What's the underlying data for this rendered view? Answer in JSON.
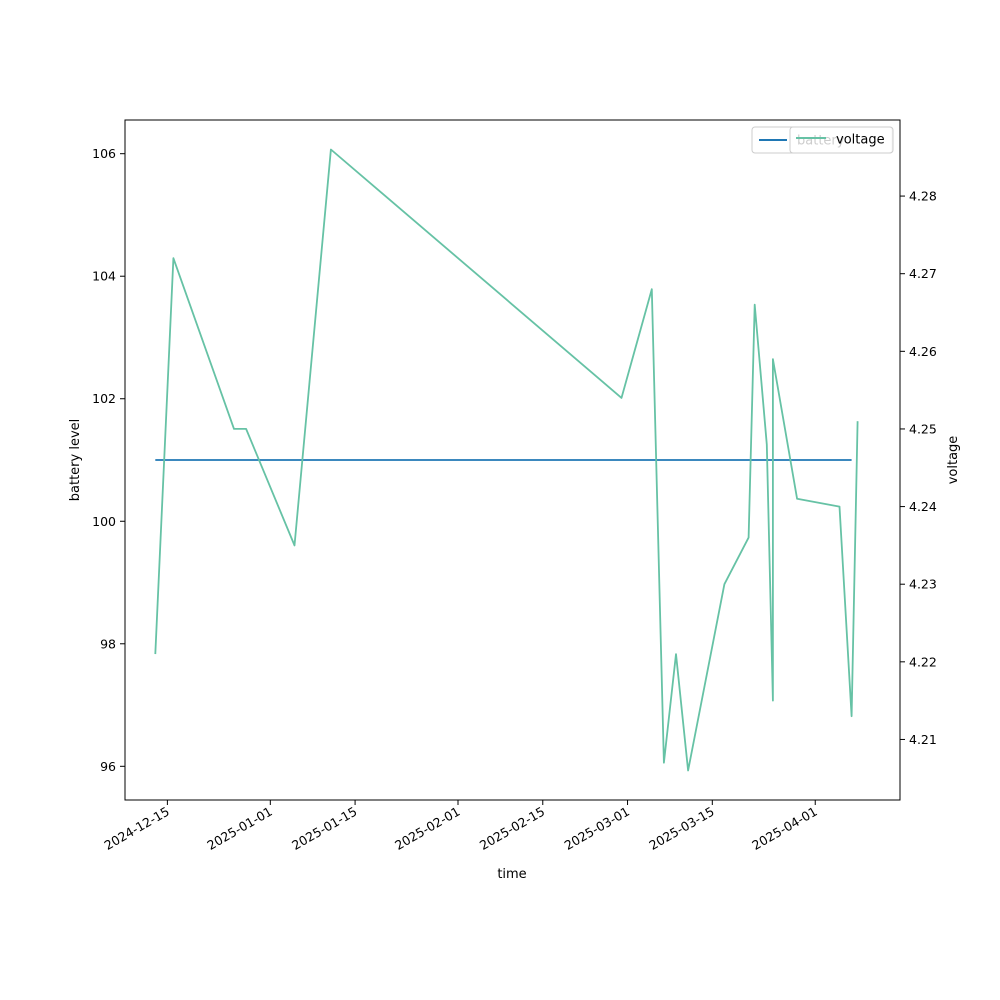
{
  "chart_data": {
    "type": "line",
    "xlabel": "time",
    "y_left_label": "battery level",
    "y_right_label": "voltage",
    "x_ticks": [
      "2024-12-15",
      "2025-01-01",
      "2025-01-15",
      "2025-02-01",
      "2025-02-15",
      "2025-03-01",
      "2025-03-15",
      "2025-04-01"
    ],
    "y_left_ticks": [
      96,
      98,
      100,
      102,
      104,
      106
    ],
    "y_left_range": [
      95.45,
      106.55
    ],
    "y_right_ticks": [
      4.21,
      4.22,
      4.23,
      4.24,
      4.25,
      4.26,
      4.27,
      4.28
    ],
    "y_right_range": [
      4.2022,
      4.2898
    ],
    "x_range": [
      "2024-12-08",
      "2025-04-15"
    ],
    "legend_placement": "top-right",
    "series": [
      {
        "name": "battery",
        "axis": "left",
        "color": "#1f77b4",
        "points": [
          [
            "2024-12-13",
            101
          ],
          [
            "2025-04-07",
            101
          ]
        ]
      },
      {
        "name": "voltage",
        "axis": "right",
        "color": "#66c2a5",
        "points": [
          [
            "2024-12-13",
            4.221
          ],
          [
            "2024-12-16",
            4.272
          ],
          [
            "2024-12-26",
            4.25
          ],
          [
            "2024-12-28",
            4.25
          ],
          [
            "2025-01-05",
            4.235
          ],
          [
            "2025-01-11",
            4.286
          ],
          [
            "2025-02-28",
            4.254
          ],
          [
            "2025-03-05",
            4.268
          ],
          [
            "2025-03-07",
            4.207
          ],
          [
            "2025-03-09",
            4.221
          ],
          [
            "2025-03-11",
            4.206
          ],
          [
            "2025-03-17",
            4.23
          ],
          [
            "2025-03-21",
            4.236
          ],
          [
            "2025-03-22",
            4.266
          ],
          [
            "2025-03-24",
            4.248
          ],
          [
            "2025-03-25",
            4.215
          ],
          [
            "2025-03-25",
            4.259
          ],
          [
            "2025-03-29",
            4.241
          ],
          [
            "2025-04-05",
            4.24
          ],
          [
            "2025-04-07",
            4.213
          ],
          [
            "2025-04-08",
            4.251
          ]
        ]
      }
    ]
  }
}
